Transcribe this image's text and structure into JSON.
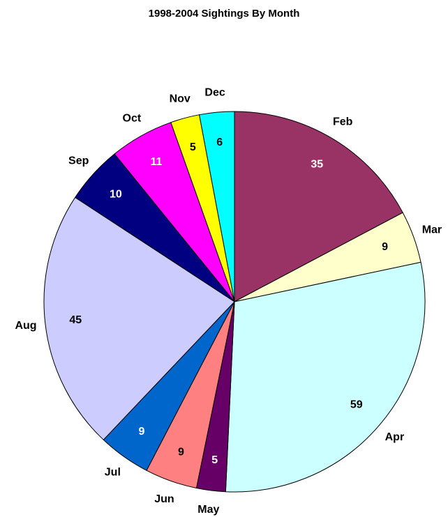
{
  "chart_data": {
    "type": "pie",
    "title": "1998-2004 Sightings By Month",
    "categories": [
      "Feb",
      "Mar",
      "Apr",
      "May",
      "Jun",
      "Jul",
      "Aug",
      "Sep",
      "Oct",
      "Nov",
      "Dec"
    ],
    "values": [
      35,
      9,
      59,
      5,
      9,
      9,
      45,
      10,
      11,
      5,
      6
    ],
    "colors": [
      "#993366",
      "#ffffcc",
      "#ccffff",
      "#660066",
      "#ff8080",
      "#0066cc",
      "#ccccff",
      "#000080",
      "#ff00ff",
      "#ffff00",
      "#00ffff"
    ]
  }
}
